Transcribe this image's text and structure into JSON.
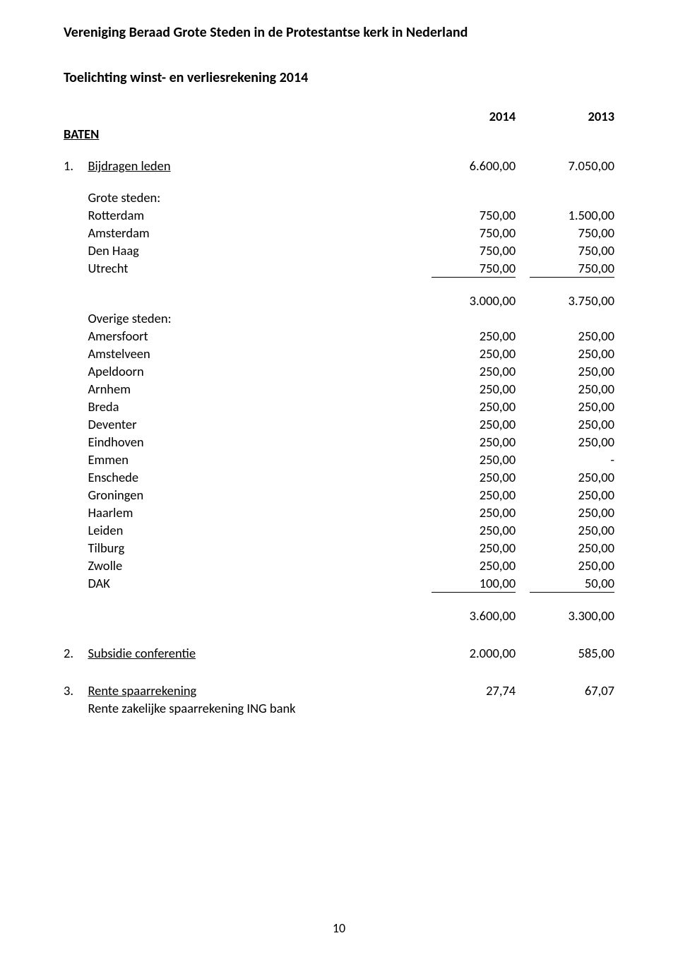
{
  "header": "Vereniging Beraad Grote Steden in de Protestantse kerk in Nederland",
  "subheader": "Toelichting winst- en verliesrekening 2014",
  "year_cols": {
    "a": "2014",
    "b": "2013"
  },
  "baten_label": "BATEN",
  "section1": {
    "num": "1.",
    "title": "Bijdragen leden",
    "a": "6.600,00",
    "b": "7.050,00",
    "grote_label": "Grote steden:",
    "grote_rows": [
      {
        "label": "Rotterdam",
        "a": "750,00",
        "b": "1.500,00"
      },
      {
        "label": "Amsterdam",
        "a": "750,00",
        "b": "750,00"
      },
      {
        "label": "Den Haag",
        "a": "750,00",
        "b": "750,00"
      },
      {
        "label": "Utrecht",
        "a": "750,00",
        "b": "750,00"
      }
    ],
    "grote_subtotal": {
      "a": "3.000,00",
      "b": "3.750,00"
    },
    "overige_label": "Overige steden:",
    "overige_rows": [
      {
        "label": "Amersfoort",
        "a": "250,00",
        "b": "250,00"
      },
      {
        "label": "Amstelveen",
        "a": "250,00",
        "b": "250,00"
      },
      {
        "label": "Apeldoorn",
        "a": "250,00",
        "b": "250,00"
      },
      {
        "label": "Arnhem",
        "a": "250,00",
        "b": "250,00"
      },
      {
        "label": "Breda",
        "a": "250,00",
        "b": "250,00"
      },
      {
        "label": "Deventer",
        "a": "250,00",
        "b": "250,00"
      },
      {
        "label": "Eindhoven",
        "a": "250,00",
        "b": "250,00"
      },
      {
        "label": "Emmen",
        "a": "250,00",
        "b": "-"
      },
      {
        "label": "Enschede",
        "a": "250,00",
        "b": "250,00"
      },
      {
        "label": "Groningen",
        "a": "250,00",
        "b": "250,00"
      },
      {
        "label": "Haarlem",
        "a": "250,00",
        "b": "250,00"
      },
      {
        "label": "Leiden",
        "a": "250,00",
        "b": "250,00"
      },
      {
        "label": "Tilburg",
        "a": "250,00",
        "b": "250,00"
      },
      {
        "label": "Zwolle",
        "a": "250,00",
        "b": "250,00"
      },
      {
        "label": "DAK",
        "a": "100,00",
        "b": "50,00"
      }
    ],
    "overige_subtotal": {
      "a": "3.600,00",
      "b": "3.300,00"
    }
  },
  "section2": {
    "num": "2.",
    "title": "Subsidie conferentie",
    "a": "2.000,00",
    "b": "585,00"
  },
  "section3": {
    "num": "3.",
    "title": "Rente spaarrekening",
    "a": "27,74",
    "b": "67,07",
    "detail": "Rente zakelijke spaarrekening ING bank"
  },
  "page_number": "10"
}
